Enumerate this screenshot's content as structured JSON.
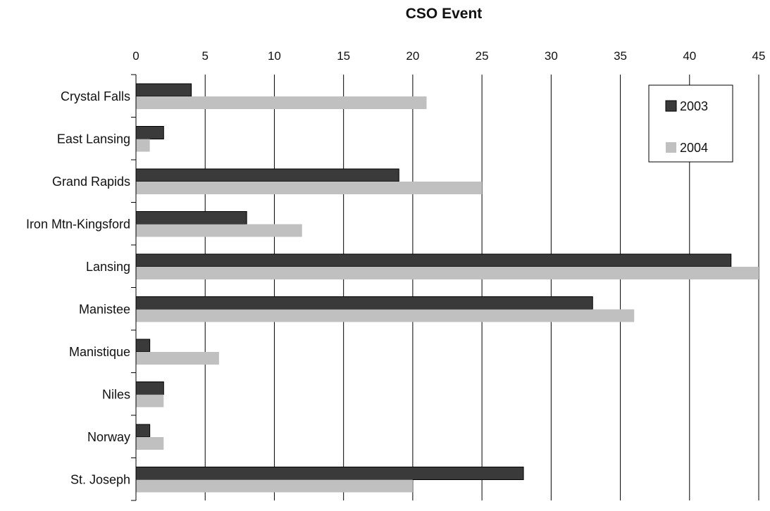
{
  "chart_data": {
    "type": "bar",
    "orientation": "horizontal",
    "title": "CSO Event",
    "xlabel": "",
    "ylabel": "",
    "categories": [
      "Crystal Falls",
      "East Lansing",
      "Grand Rapids",
      "Iron Mtn-Kingsford",
      "Lansing",
      "Manistee",
      "Manistique",
      "Niles",
      "Norway",
      "St. Joseph"
    ],
    "series": [
      {
        "name": "2003",
        "values": [
          4,
          2,
          19,
          8,
          43,
          33,
          1,
          2,
          1,
          28
        ],
        "color": "#3a3a3a"
      },
      {
        "name": "2004",
        "values": [
          21,
          1,
          25,
          12,
          45,
          36,
          6,
          2,
          2,
          20
        ],
        "color": "#c0c0c0"
      }
    ],
    "xlim": [
      0,
      45
    ],
    "xticks": [
      0,
      5,
      10,
      15,
      20,
      25,
      30,
      35,
      40,
      45
    ],
    "x_axis_position": "top",
    "grid": true,
    "legend_position": "top-right"
  }
}
